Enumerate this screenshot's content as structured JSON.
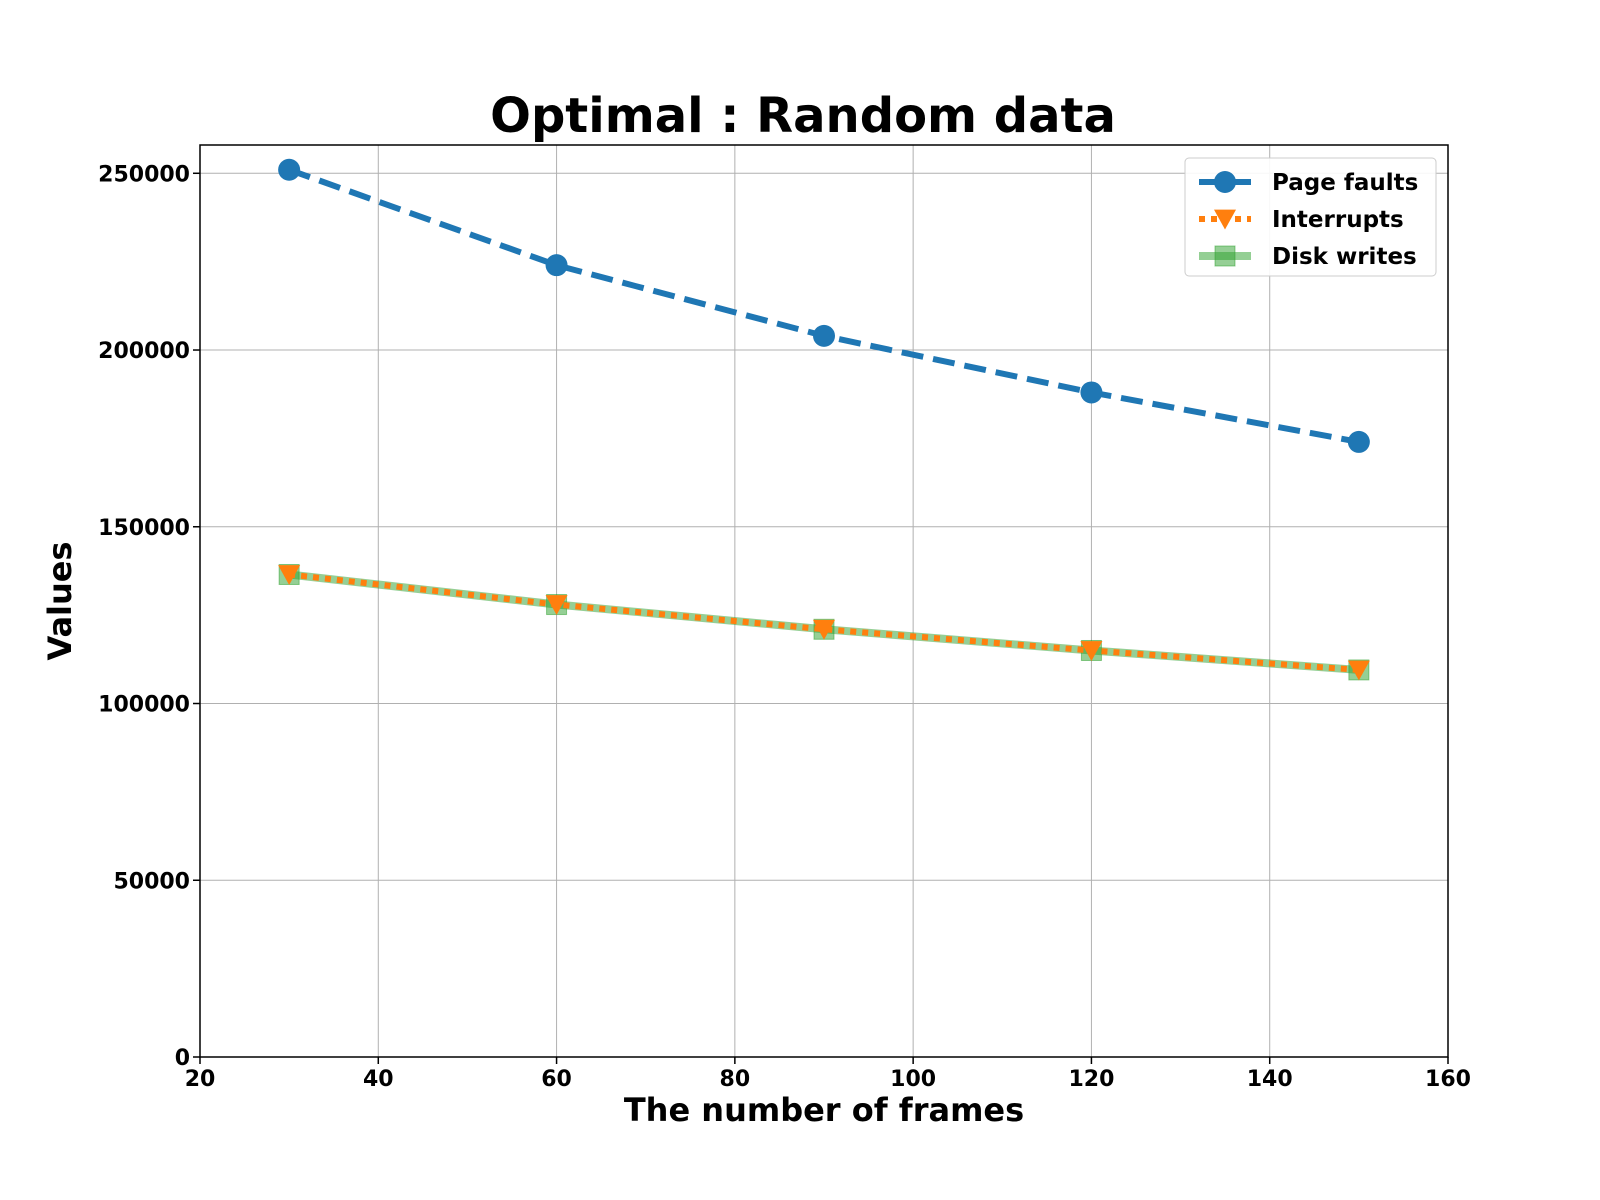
{
  "chart_data": {
    "type": "line",
    "title": "Optimal : Random data",
    "xlabel": "The number of frames",
    "ylabel": "Values",
    "xlim": [
      20,
      160
    ],
    "ylim": [
      0,
      258000
    ],
    "xticks": [
      20,
      40,
      60,
      80,
      100,
      120,
      140,
      160
    ],
    "yticks": [
      0,
      50000,
      100000,
      150000,
      200000,
      250000
    ],
    "grid": true,
    "legend_position": "top-right",
    "x": [
      30,
      60,
      90,
      120,
      150
    ],
    "series": [
      {
        "name": "Page faults",
        "values": [
          251000,
          224000,
          204000,
          188000,
          174000
        ],
        "color": "#1f77b4",
        "line_style": "dashed",
        "marker": "circle"
      },
      {
        "name": "Interrupts",
        "values": [
          136500,
          128000,
          121000,
          115000,
          109500
        ],
        "color": "#ff7f0e",
        "line_style": "dotted",
        "marker": "triangle-down"
      },
      {
        "name": "Disk writes",
        "values": [
          136500,
          128000,
          121000,
          115000,
          109500
        ],
        "color": "#2ca02c",
        "line_style": "solid",
        "marker": "square"
      }
    ]
  }
}
